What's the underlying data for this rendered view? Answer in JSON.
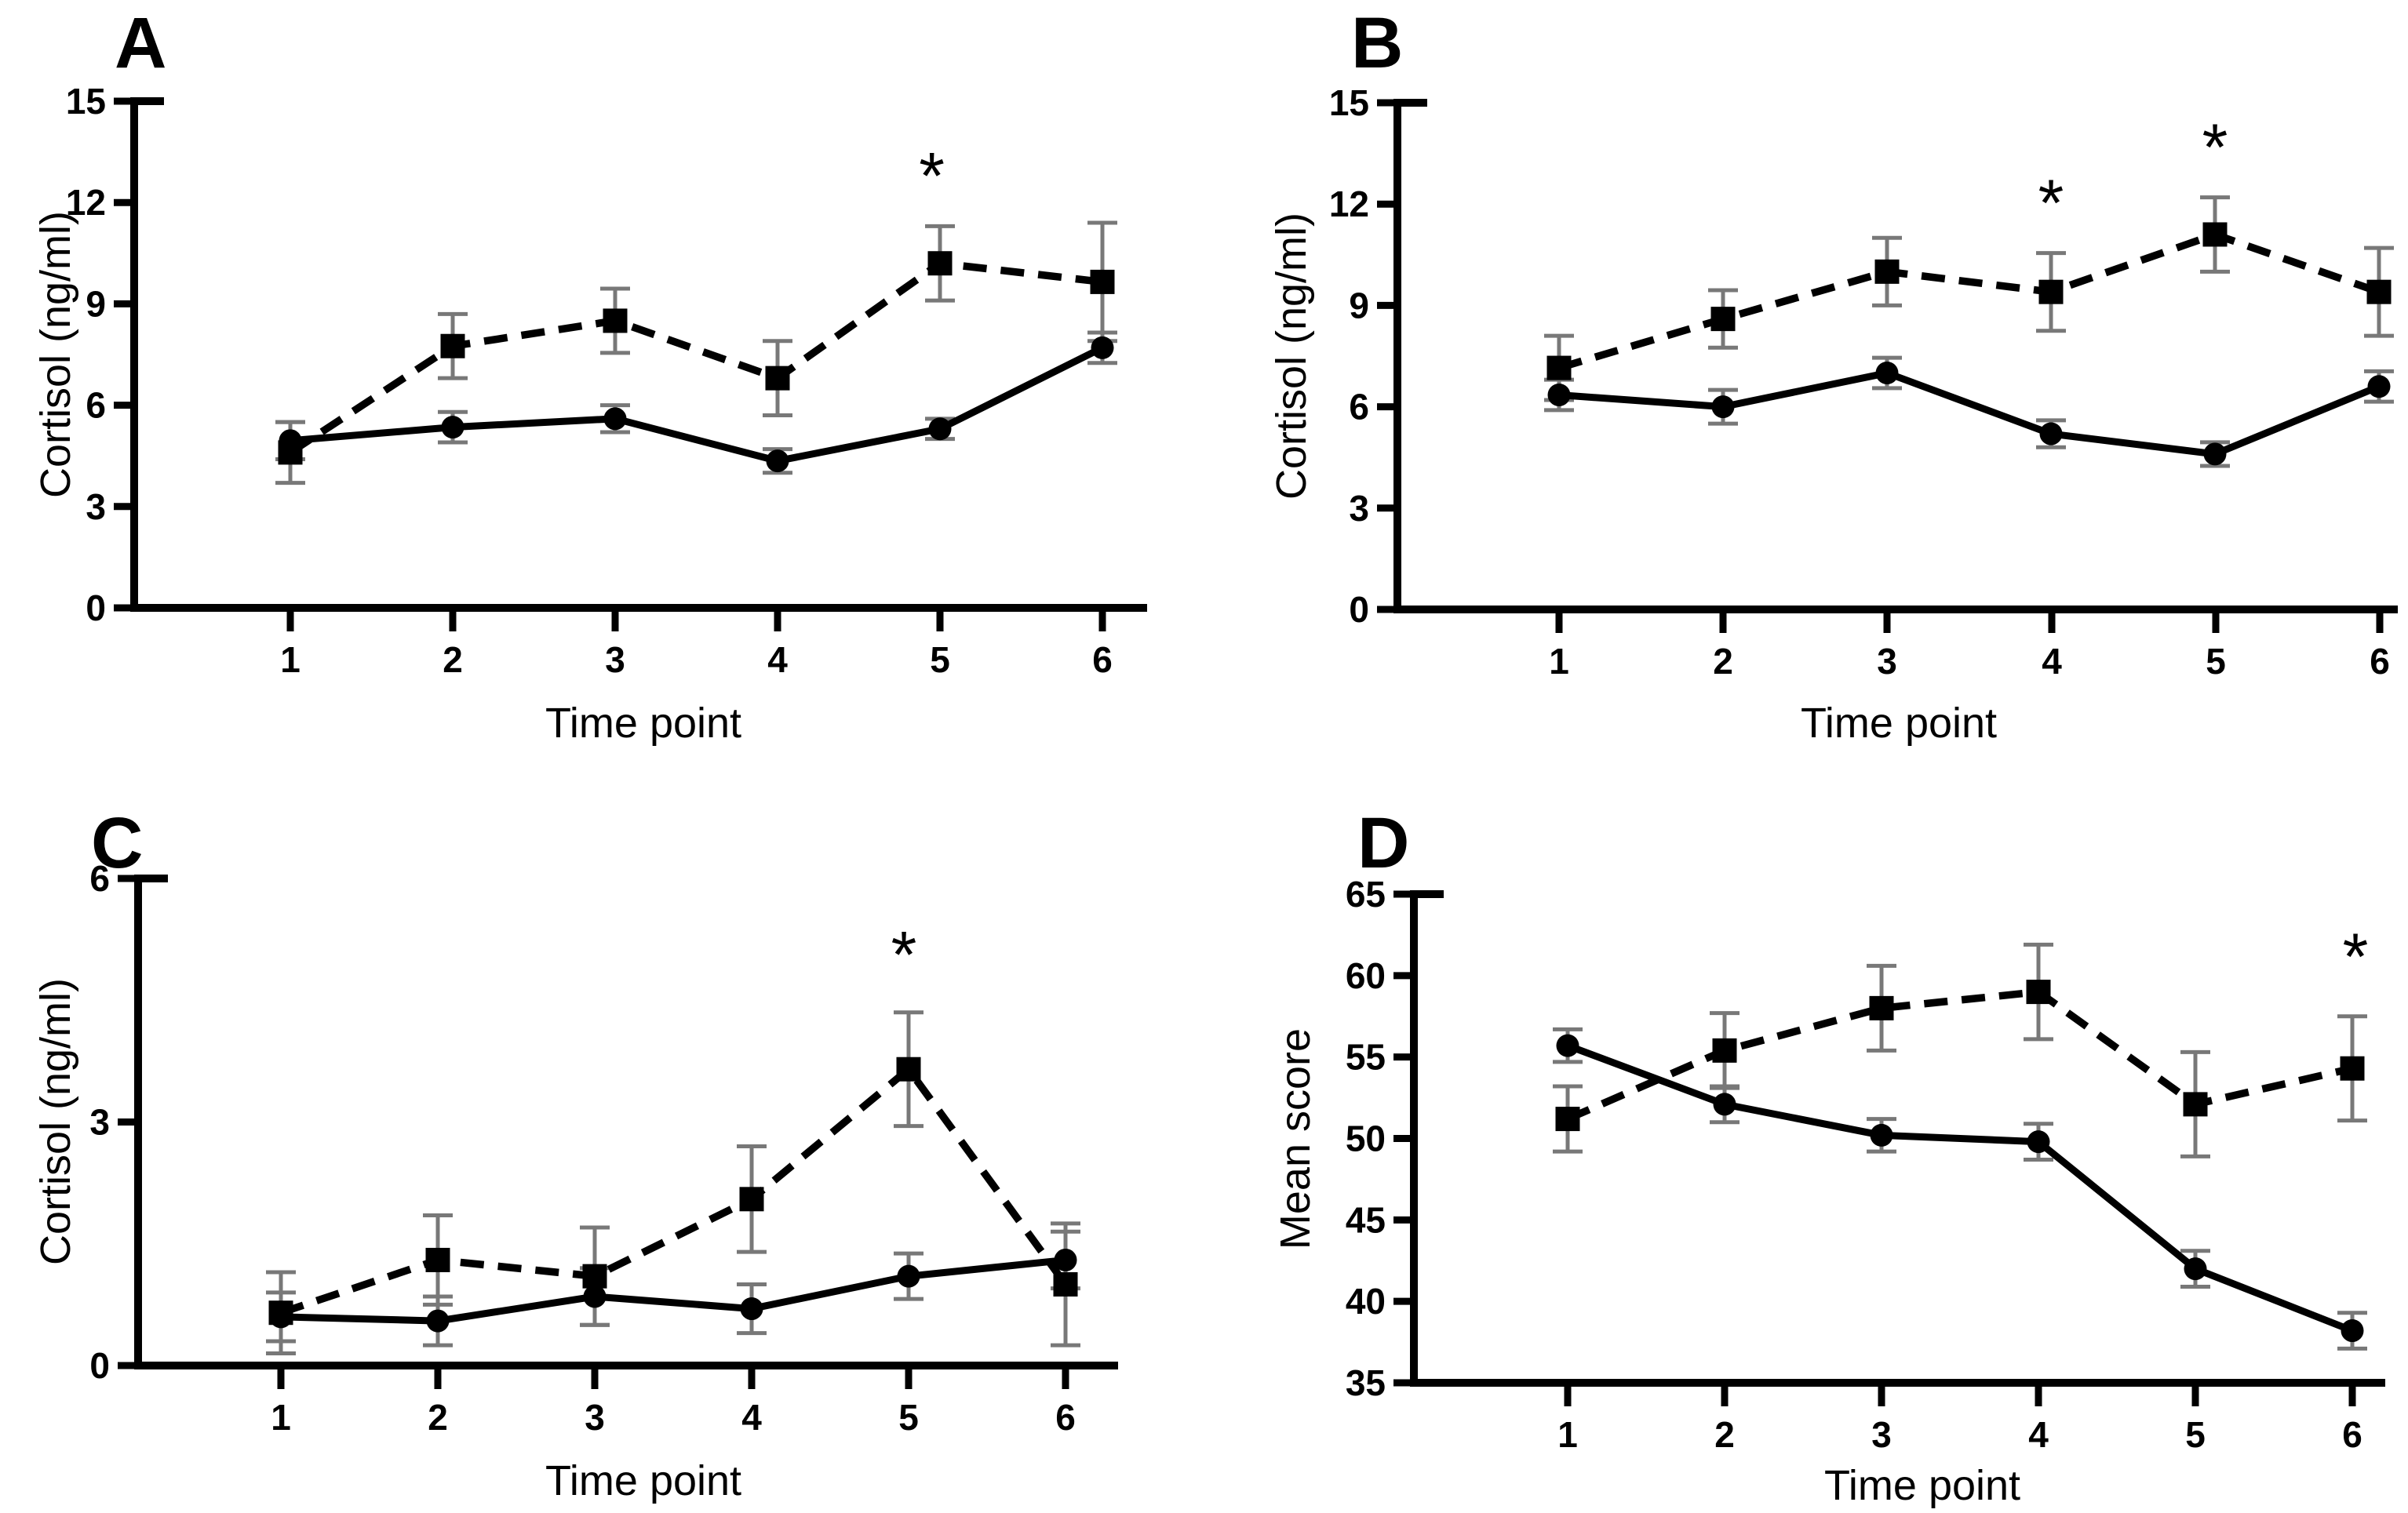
{
  "figure": {
    "background": "#ffffff",
    "ink": "#000000",
    "error_bar_color": "#787878",
    "significance_marker": "*"
  },
  "chart_data": [
    {
      "type": "line",
      "panel_label": "A",
      "xlabel": "Time point",
      "ylabel": "Cortisol (ng/ml)",
      "x": [
        1,
        2,
        3,
        4,
        5,
        6
      ],
      "xtick_labels": [
        "1",
        "2",
        "3",
        "4",
        "5",
        "6"
      ],
      "ylim": [
        0,
        15
      ],
      "yticks": [
        0,
        3,
        6,
        9,
        12,
        15
      ],
      "grid": false,
      "legend": "none",
      "series": [
        {
          "name": "dashed squares",
          "marker": "square",
          "line": "dashed",
          "values": [
            4.6,
            7.75,
            8.5,
            6.8,
            10.2,
            9.65
          ],
          "errors": [
            0.9,
            0.95,
            0.95,
            1.1,
            1.1,
            1.75
          ]
        },
        {
          "name": "solid circles",
          "marker": "circle",
          "line": "solid",
          "values": [
            4.95,
            5.35,
            5.6,
            4.35,
            5.3,
            7.7
          ],
          "errors": [
            0.55,
            0.45,
            0.4,
            0.35,
            0.3,
            0.45
          ]
        }
      ],
      "annotations": [
        {
          "text": "*",
          "x": 4.95,
          "y": 13.0
        }
      ]
    },
    {
      "type": "line",
      "panel_label": "B",
      "xlabel": "Time point",
      "ylabel": "Cortisol (ng/ml)",
      "x": [
        1,
        2,
        3,
        4,
        5,
        6
      ],
      "xtick_labels": [
        "1",
        "2",
        "3",
        "4",
        "5",
        "6"
      ],
      "ylim": [
        0,
        15
      ],
      "yticks": [
        0,
        3,
        6,
        9,
        12,
        15
      ],
      "grid": false,
      "legend": "none",
      "series": [
        {
          "name": "dashed squares",
          "marker": "square",
          "line": "dashed",
          "values": [
            7.15,
            8.6,
            10.0,
            9.4,
            11.1,
            9.4
          ],
          "errors": [
            0.95,
            0.85,
            1.0,
            1.15,
            1.1,
            1.3
          ]
        },
        {
          "name": "solid circles",
          "marker": "circle",
          "line": "solid",
          "values": [
            6.35,
            6.0,
            7.0,
            5.2,
            4.6,
            6.6
          ],
          "errors": [
            0.45,
            0.5,
            0.45,
            0.4,
            0.35,
            0.45
          ]
        }
      ],
      "annotations": [
        {
          "text": "*",
          "x": 4.0,
          "y": 12.25
        },
        {
          "text": "*",
          "x": 5.0,
          "y": 13.9
        }
      ]
    },
    {
      "type": "line",
      "panel_label": "C",
      "xlabel": "Time point",
      "ylabel": "Cortisol (ng/ml)",
      "x": [
        1,
        2,
        3,
        4,
        5,
        6
      ],
      "xtick_labels": [
        "1",
        "2",
        "3",
        "4",
        "5",
        "6"
      ],
      "ylim": [
        0,
        6
      ],
      "yticks": [
        0,
        3,
        6
      ],
      "grid": false,
      "legend": "none",
      "series": [
        {
          "name": "dashed squares",
          "marker": "square",
          "line": "dashed",
          "values": [
            0.65,
            1.3,
            1.1,
            2.05,
            3.65,
            1.0
          ],
          "errors": [
            0.5,
            0.55,
            0.6,
            0.65,
            0.7,
            0.75
          ]
        },
        {
          "name": "solid circles",
          "marker": "circle",
          "line": "solid",
          "values": [
            0.6,
            0.55,
            0.85,
            0.7,
            1.1,
            1.3
          ],
          "errors": [
            0.3,
            0.3,
            0.35,
            0.3,
            0.28,
            0.35
          ]
        }
      ],
      "annotations": [
        {
          "text": "*",
          "x": 4.97,
          "y": 5.15
        }
      ]
    },
    {
      "type": "line",
      "panel_label": "D",
      "xlabel": "Time point",
      "ylabel": "Mean score",
      "x": [
        1,
        2,
        3,
        4,
        5,
        6
      ],
      "xtick_labels": [
        "1",
        "2",
        "3",
        "4",
        "5",
        "6"
      ],
      "ylim": [
        35,
        65
      ],
      "yticks": [
        35,
        40,
        45,
        50,
        55,
        60,
        65
      ],
      "grid": false,
      "legend": "none",
      "series": [
        {
          "name": "dashed squares",
          "marker": "square",
          "line": "dashed",
          "values": [
            51.2,
            55.4,
            58.0,
            59.0,
            52.1,
            54.3
          ],
          "errors": [
            2.0,
            2.3,
            2.6,
            2.9,
            3.2,
            3.2
          ]
        },
        {
          "name": "solid circles",
          "marker": "circle",
          "line": "solid",
          "values": [
            55.7,
            52.1,
            50.2,
            49.8,
            42.0,
            38.2
          ],
          "errors": [
            1.0,
            1.1,
            1.0,
            1.1,
            1.1,
            1.1
          ]
        }
      ],
      "annotations": [
        {
          "text": "*",
          "x": 6.02,
          "y": 61.6
        }
      ]
    }
  ]
}
